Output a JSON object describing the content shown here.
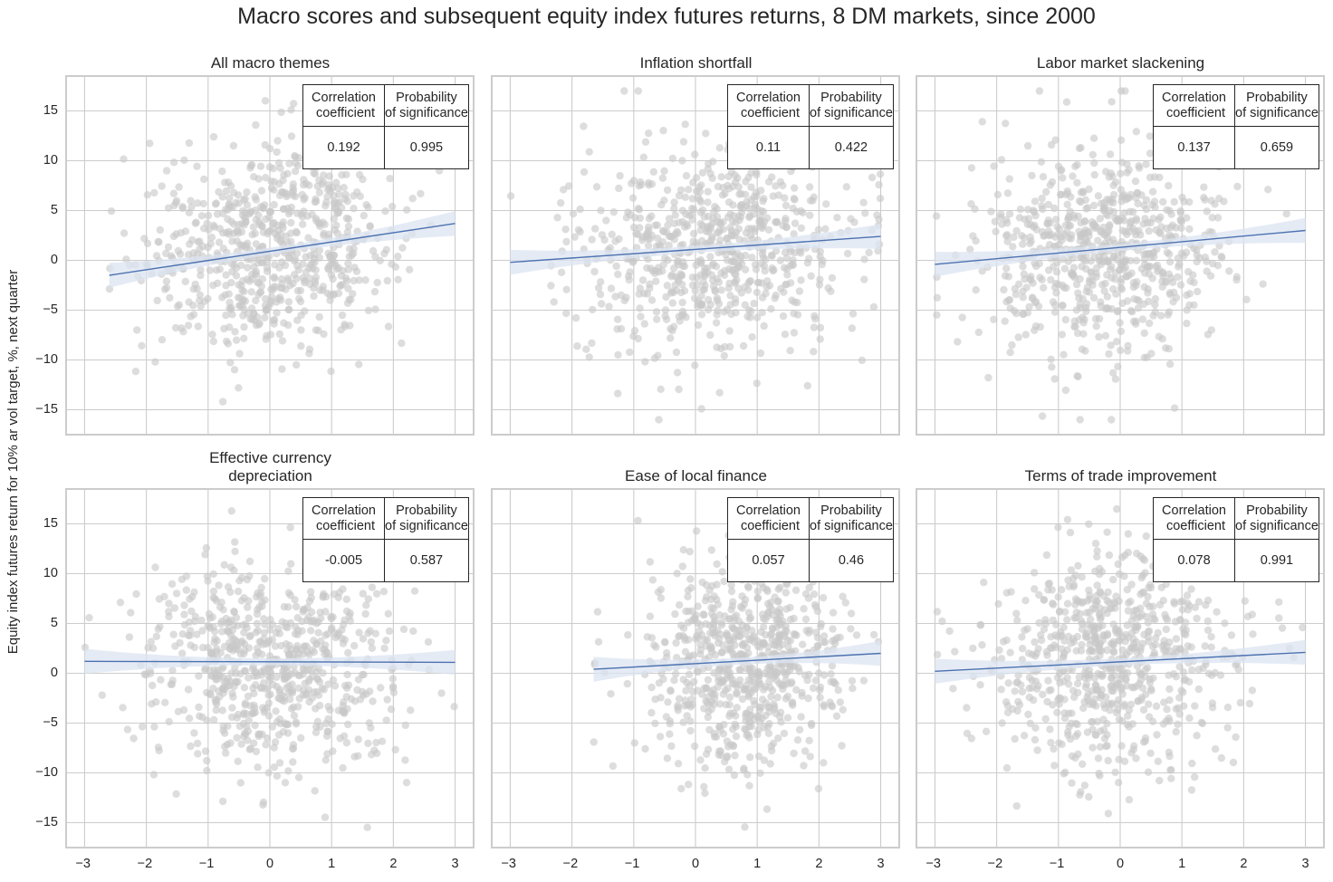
{
  "figure": {
    "suptitle": "Macro scores and subsequent equity index futures returns, 8 DM markets, since 2000",
    "ylabel": "Equity index futures return for 10% ar vol target, %, next quarter",
    "table_headers": [
      "Correlation\n coefficient",
      "Probability\nof significance"
    ]
  },
  "chart_data": [
    {
      "type": "scatter",
      "title": "All macro themes",
      "xlabel": "",
      "ylabel": "Equity index futures return for 10% ar vol target, %, next quarter",
      "xlim": [
        -3.3,
        3.3
      ],
      "ylim": [
        -17.5,
        18.5
      ],
      "xticks": [
        -3,
        -2,
        -1,
        0,
        1,
        2,
        3
      ],
      "yticks": [
        -15,
        -10,
        -5,
        0,
        5,
        10,
        15
      ],
      "grid": true,
      "regression": {
        "x": [
          -2.6,
          3.0
        ],
        "y": [
          -1.5,
          3.7
        ]
      },
      "correlation_coefficient": 0.192,
      "probability_of_significance": 0.995,
      "point_spread": {
        "x_mean": 0.0,
        "x_sd": 1.0,
        "x_min": -2.6,
        "x_max": 3.0,
        "y_mean": 1.0,
        "y_sd": 5.2
      }
    },
    {
      "type": "scatter",
      "title": "Inflation shortfall",
      "xlim": [
        -3.3,
        3.3
      ],
      "ylim": [
        -17.5,
        18.5
      ],
      "xticks": [
        -3,
        -2,
        -1,
        0,
        1,
        2,
        3
      ],
      "yticks": [
        -15,
        -10,
        -5,
        0,
        5,
        10,
        15
      ],
      "grid": true,
      "regression": {
        "x": [
          -3.0,
          3.0
        ],
        "y": [
          -0.2,
          2.4
        ]
      },
      "correlation_coefficient": 0.11,
      "probability_of_significance": 0.422,
      "point_spread": {
        "x_mean": 0.3,
        "x_sd": 1.1,
        "x_min": -3.0,
        "x_max": 3.0,
        "y_mean": 1.0,
        "y_sd": 5.3
      }
    },
    {
      "type": "scatter",
      "title": "Labor market slackening",
      "xlim": [
        -3.3,
        3.3
      ],
      "ylim": [
        -17.5,
        18.5
      ],
      "xticks": [
        -3,
        -2,
        -1,
        0,
        1,
        2,
        3
      ],
      "yticks": [
        -15,
        -10,
        -5,
        0,
        5,
        10,
        15
      ],
      "grid": true,
      "regression": {
        "x": [
          -3.0,
          3.0
        ],
        "y": [
          -0.4,
          3.0
        ]
      },
      "correlation_coefficient": 0.137,
      "probability_of_significance": 0.659,
      "point_spread": {
        "x_mean": -0.2,
        "x_sd": 1.0,
        "x_min": -3.0,
        "x_max": 3.0,
        "y_mean": 1.0,
        "y_sd": 5.3
      }
    },
    {
      "type": "scatter",
      "title": "Effective currency\ndepreciation",
      "xlim": [
        -3.3,
        3.3
      ],
      "ylim": [
        -17.5,
        18.5
      ],
      "xticks": [
        -3,
        -2,
        -1,
        0,
        1,
        2,
        3
      ],
      "yticks": [
        -15,
        -10,
        -5,
        0,
        5,
        10,
        15
      ],
      "grid": true,
      "regression": {
        "x": [
          -3.0,
          3.0
        ],
        "y": [
          1.2,
          1.1
        ]
      },
      "correlation_coefficient": -0.005,
      "probability_of_significance": 0.587,
      "point_spread": {
        "x_mean": 0.0,
        "x_sd": 1.0,
        "x_min": -3.0,
        "x_max": 3.0,
        "y_mean": 1.0,
        "y_sd": 5.3
      }
    },
    {
      "type": "scatter",
      "title": "Ease of local finance",
      "xlim": [
        -3.3,
        3.3
      ],
      "ylim": [
        -17.5,
        18.5
      ],
      "xticks": [
        -3,
        -2,
        -1,
        0,
        1,
        2,
        3
      ],
      "yticks": [
        -15,
        -10,
        -5,
        0,
        5,
        10,
        15
      ],
      "grid": true,
      "regression": {
        "x": [
          -1.65,
          3.0
        ],
        "y": [
          0.4,
          2.0
        ]
      },
      "correlation_coefficient": 0.057,
      "probability_of_significance": 0.46,
      "point_spread": {
        "x_mean": 0.8,
        "x_sd": 0.8,
        "x_min": -1.65,
        "x_max": 3.0,
        "y_mean": 1.0,
        "y_sd": 5.3
      }
    },
    {
      "type": "scatter",
      "title": "Terms of trade improvement",
      "xlim": [
        -3.3,
        3.3
      ],
      "ylim": [
        -17.5,
        18.5
      ],
      "xticks": [
        -3,
        -2,
        -1,
        0,
        1,
        2,
        3
      ],
      "yticks": [
        -15,
        -10,
        -5,
        0,
        5,
        10,
        15
      ],
      "grid": true,
      "regression": {
        "x": [
          -3.0,
          3.0
        ],
        "y": [
          0.2,
          2.1
        ]
      },
      "correlation_coefficient": 0.078,
      "probability_of_significance": 0.991,
      "point_spread": {
        "x_mean": -0.1,
        "x_sd": 1.0,
        "x_min": -3.0,
        "x_max": 3.0,
        "y_mean": 1.0,
        "y_sd": 5.2
      }
    }
  ],
  "colors": {
    "points": "#c8c8c8",
    "regression_line": "#4c72b0",
    "ci_band": "#dce4f1",
    "grid": "#cccccc",
    "axes_edge": "#cccccc",
    "text": "#262626"
  }
}
